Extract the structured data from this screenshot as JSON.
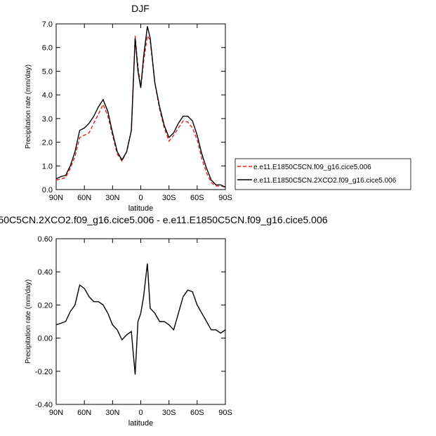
{
  "chart_data": [
    {
      "type": "line",
      "title": "DJF",
      "xlabel": "latitude",
      "ylabel": "Precipitation rate (mm/day)",
      "x": [
        90,
        85,
        80,
        75,
        70,
        65,
        60,
        55,
        50,
        45,
        40,
        35,
        30,
        25,
        20,
        15,
        10,
        6,
        3,
        0,
        -3,
        -7,
        -10,
        -15,
        -20,
        -25,
        -30,
        -35,
        -40,
        -45,
        -50,
        -55,
        -60,
        -65,
        -70,
        -75,
        -80,
        -85,
        -90
      ],
      "xlim": [
        90,
        -90
      ],
      "xticks": [
        {
          "value": 90,
          "label": "90N"
        },
        {
          "value": 60,
          "label": "60N"
        },
        {
          "value": 30,
          "label": "30N"
        },
        0,
        {
          "value": -30,
          "label": "30S"
        },
        {
          "value": -60,
          "label": "60S"
        },
        {
          "value": -90,
          "label": "90S"
        }
      ],
      "ylim": [
        0,
        7
      ],
      "yticks": [
        {
          "value": 0,
          "label": "0.0"
        },
        {
          "value": 1,
          "label": "1.0"
        },
        {
          "value": 2,
          "label": "2.0"
        },
        {
          "value": 3,
          "label": "3.0"
        },
        {
          "value": 4,
          "label": "4.0"
        },
        {
          "value": 5,
          "label": "5.0"
        },
        {
          "value": 6,
          "label": "6.0"
        },
        {
          "value": 7,
          "label": "7.0"
        }
      ],
      "legend": "outside-right",
      "series": [
        {
          "name": "e.e11.E1850C5CN.f09_g16.cice5.006",
          "color": "#e0201b",
          "line_style": "dashed",
          "values": [
            0.4,
            0.45,
            0.5,
            0.9,
            1.4,
            2.2,
            2.3,
            2.4,
            2.8,
            3.2,
            3.6,
            3.1,
            2.3,
            1.5,
            1.2,
            1.6,
            2.5,
            6.5,
            5.2,
            4.3,
            5.4,
            6.5,
            6.3,
            4.5,
            3.4,
            2.6,
            2.05,
            2.3,
            2.6,
            2.9,
            2.85,
            2.6,
            2.1,
            1.3,
            0.7,
            0.3,
            0.15,
            0.15,
            0.1
          ]
        },
        {
          "name": "e.e11.E1850C5CN.2XCO2.f09_g16.cice5.006",
          "color": "#000000",
          "line_style": "solid",
          "values": [
            0.45,
            0.55,
            0.6,
            1.0,
            1.6,
            2.5,
            2.6,
            2.8,
            3.1,
            3.5,
            3.8,
            3.3,
            2.4,
            1.6,
            1.25,
            1.6,
            2.5,
            6.4,
            5.0,
            4.3,
            5.6,
            6.9,
            6.4,
            4.5,
            3.5,
            2.7,
            2.2,
            2.4,
            2.8,
            3.1,
            3.1,
            2.9,
            2.3,
            1.5,
            0.9,
            0.4,
            0.2,
            0.2,
            0.1
          ]
        }
      ]
    },
    {
      "type": "line",
      "title": "50C5CN.2XCO2.f09_g16.cice5.006 - e.e11.E1850C5CN.f09_g16.cice5.006",
      "xlabel": "latitude",
      "ylabel": "Precipitation rate (mm/day)",
      "x": [
        90,
        85,
        80,
        75,
        70,
        65,
        60,
        55,
        50,
        45,
        40,
        35,
        30,
        25,
        20,
        15,
        10,
        6,
        3,
        0,
        -3,
        -7,
        -10,
        -15,
        -20,
        -25,
        -30,
        -35,
        -40,
        -45,
        -50,
        -55,
        -60,
        -65,
        -70,
        -75,
        -80,
        -85,
        -90
      ],
      "xlim": [
        90,
        -90
      ],
      "xticks": [
        {
          "value": 90,
          "label": "90N"
        },
        {
          "value": 60,
          "label": "60N"
        },
        {
          "value": 30,
          "label": "30N"
        },
        0,
        {
          "value": -30,
          "label": "30S"
        },
        {
          "value": -60,
          "label": "60S"
        },
        {
          "value": -90,
          "label": "90S"
        }
      ],
      "ylim": [
        -0.4,
        0.6
      ],
      "yticks": [
        {
          "value": -0.4,
          "label": "-0.40"
        },
        {
          "value": -0.2,
          "label": "-0.20"
        },
        {
          "value": 0,
          "label": "0.00"
        },
        {
          "value": 0.2,
          "label": "0.20"
        },
        {
          "value": 0.4,
          "label": "0.40"
        },
        {
          "value": 0.6,
          "label": "0.60"
        }
      ],
      "series": [
        {
          "color": "#000000",
          "line_style": "solid",
          "values": [
            0.08,
            0.09,
            0.1,
            0.16,
            0.2,
            0.32,
            0.3,
            0.25,
            0.22,
            0.22,
            0.2,
            0.15,
            0.08,
            0.05,
            -0.01,
            0.02,
            0.04,
            -0.22,
            0.1,
            0.15,
            0.25,
            0.45,
            0.18,
            0.15,
            0.1,
            0.1,
            0.08,
            0.05,
            0.15,
            0.25,
            0.29,
            0.28,
            0.2,
            0.15,
            0.1,
            0.05,
            0.05,
            0.03,
            0.05
          ]
        }
      ]
    }
  ]
}
